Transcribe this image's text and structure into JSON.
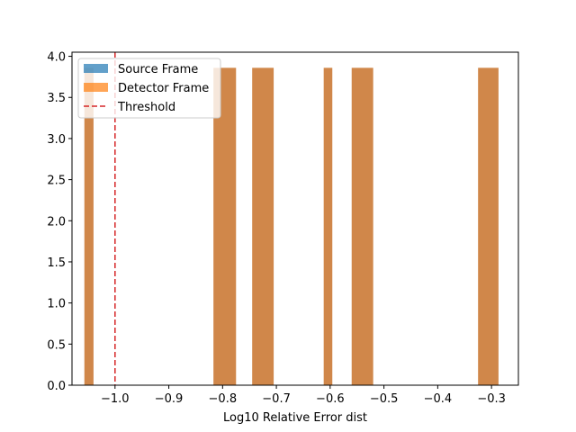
{
  "chart_data": {
    "type": "histogram",
    "title": "",
    "xlabel": "Log10 Relative Error dist",
    "ylabel": "",
    "xlim": [
      -1.08,
      -0.25
    ],
    "ylim": [
      0,
      4.05
    ],
    "xticks": [
      -1.0,
      -0.9,
      -0.8,
      -0.7,
      -0.6,
      -0.5,
      -0.4,
      -0.3
    ],
    "xtick_labels": [
      "−1.0",
      "−0.9",
      "−0.8",
      "−0.7",
      "−0.6",
      "−0.5",
      "−0.4",
      "−0.3"
    ],
    "yticks": [
      0.0,
      0.5,
      1.0,
      1.5,
      2.0,
      2.5,
      3.0,
      3.5,
      4.0
    ],
    "ytick_labels": [
      "0.0",
      "0.5",
      "1.0",
      "1.5",
      "2.0",
      "2.5",
      "3.0",
      "3.5",
      "4.0"
    ],
    "grid": false,
    "legend_position": "top-left",
    "bins": [
      {
        "x0": -1.057,
        "x1": -1.04,
        "value": 3.86
      },
      {
        "x0": -0.817,
        "x1": -0.775,
        "value": 3.86
      },
      {
        "x0": -0.745,
        "x1": -0.705,
        "value": 3.86
      },
      {
        "x0": -0.612,
        "x1": -0.596,
        "value": 3.86
      },
      {
        "x0": -0.56,
        "x1": -0.52,
        "value": 3.86
      },
      {
        "x0": -0.325,
        "x1": -0.287,
        "value": 3.86
      }
    ],
    "series": [
      {
        "name": "Source Frame",
        "color": "#1f77b4",
        "opacity": 0.7
      },
      {
        "name": "Detector Frame",
        "color": "#ff7f0e",
        "opacity": 0.7
      }
    ],
    "threshold": {
      "name": "Threshold",
      "x": -1.0,
      "color": "#d62728",
      "style": "dashed"
    },
    "overlap_color": "#d0874a"
  }
}
